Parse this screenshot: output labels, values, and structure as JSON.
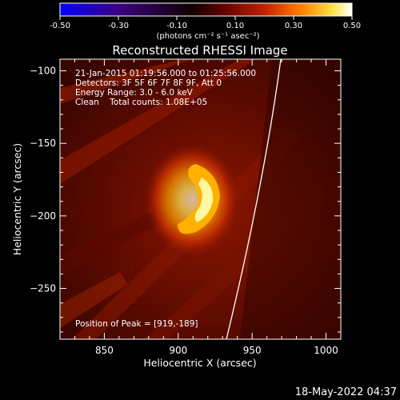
{
  "colorbar": {
    "tick_labels": [
      "-0.50",
      "-0.30",
      "-0.10",
      "0.10",
      "0.30",
      "0.50"
    ],
    "units": "(photons cm⁻² s⁻¹ asec⁻²)",
    "min": -0.5,
    "max": 0.5,
    "gradient": [
      "#0000ff",
      "#2a0060",
      "#000000",
      "#7a0000",
      "#e03000",
      "#ff9a00",
      "#ffff80",
      "#ffffff"
    ]
  },
  "plot": {
    "title": "Reconstructed RHESSI Image",
    "xlabel": "Heliocentric X (arcsec)",
    "ylabel": "Heliocentric Y (arcsec)",
    "x_ticks": [
      "850",
      "900",
      "950",
      "1000"
    ],
    "y_ticks": [
      "−100",
      "−150",
      "−200",
      "−250"
    ],
    "info_lines": [
      "21-Jan-2015 01:19:56.000 to 01:25:56.000",
      "Detectors: 3F 5F 6F 7F 8F 9F, Att 0",
      "Energy Range: 3.0 - 6.0 keV",
      "Clean    Total counts: 1.08E+05"
    ],
    "peak_text": "Position of Peak = [919,-189]"
  },
  "chart_data": {
    "type": "heatmap",
    "title": "Reconstructed RHESSI Image",
    "xlabel": "Heliocentric X (arcsec)",
    "ylabel": "Heliocentric Y (arcsec)",
    "xlim": [
      820,
      1010
    ],
    "ylim": [
      -285,
      -92
    ],
    "x_ticks": [
      850,
      900,
      950,
      1000
    ],
    "y_ticks": [
      -100,
      -150,
      -200,
      -250
    ],
    "peak": [
      919,
      -189
    ],
    "colorbar_range": [
      -0.5,
      0.5
    ]
  },
  "footer": {
    "timestamp": "18-May-2022 04:37"
  }
}
